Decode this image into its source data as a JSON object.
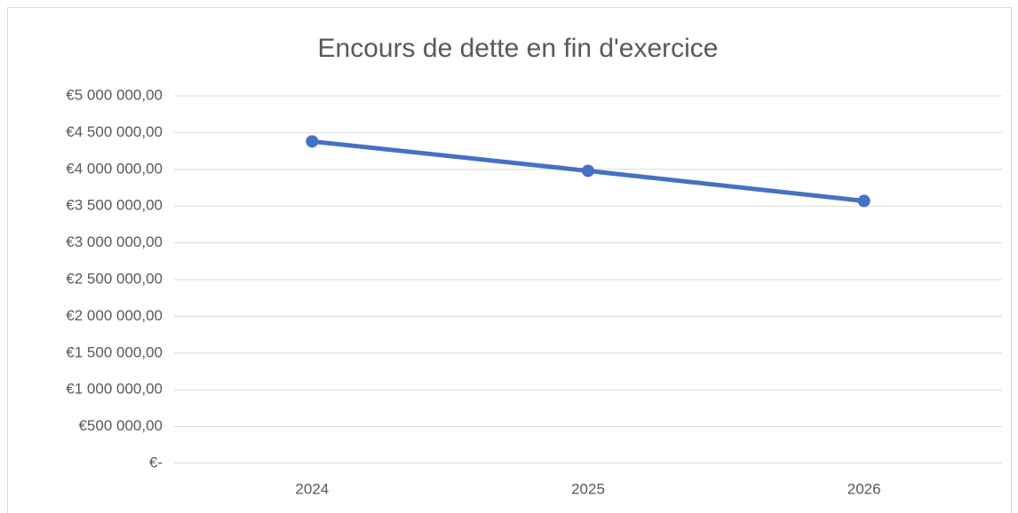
{
  "chart_data": {
    "type": "line",
    "title": "Encours de dette en fin d'exercice",
    "categories": [
      "2024",
      "2025",
      "2026"
    ],
    "series": [
      {
        "name": "Encours de dette",
        "color": "#4472c4",
        "values": [
          4380000,
          3980000,
          3570000
        ]
      }
    ],
    "ylim": [
      0,
      5000000
    ],
    "yticks": [
      {
        "value": 0,
        "label": "€-"
      },
      {
        "value": 500000,
        "label": "€500 000,00"
      },
      {
        "value": 1000000,
        "label": "€1 000 000,00"
      },
      {
        "value": 1500000,
        "label": "€1 500 000,00"
      },
      {
        "value": 2000000,
        "label": "€2 000 000,00"
      },
      {
        "value": 2500000,
        "label": "€2 500 000,00"
      },
      {
        "value": 3000000,
        "label": "€3 000 000,00"
      },
      {
        "value": 3500000,
        "label": "€3 500 000,00"
      },
      {
        "value": 4000000,
        "label": "€4 000 000,00"
      },
      {
        "value": 4500000,
        "label": "€4 500 000,00"
      },
      {
        "value": 5000000,
        "label": "€5 000 000,00"
      }
    ],
    "grid": true
  }
}
